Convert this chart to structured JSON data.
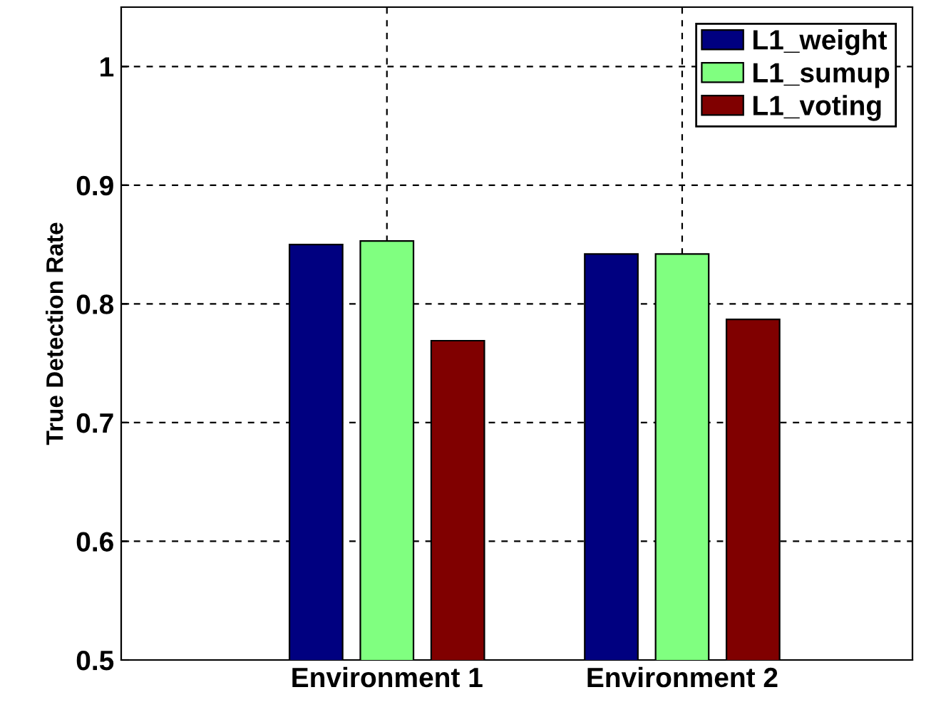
{
  "chart_data": {
    "type": "bar",
    "ylabel": "True Detection Rate",
    "categories": [
      "Environment 1",
      "Environment 2"
    ],
    "series": [
      {
        "name": "L1_weight",
        "color": "#000080",
        "values": [
          0.85,
          0.842
        ]
      },
      {
        "name": "L1_sumup",
        "color": "#80ff80",
        "values": [
          0.853,
          0.842
        ]
      },
      {
        "name": "L1_voting",
        "color": "#800000",
        "values": [
          0.769,
          0.787
        ]
      }
    ],
    "ylim": [
      0.5,
      1.05
    ],
    "yticks": [
      0.5,
      0.6,
      0.7,
      0.8,
      0.9,
      1
    ],
    "grid": true,
    "legend": "top right"
  }
}
